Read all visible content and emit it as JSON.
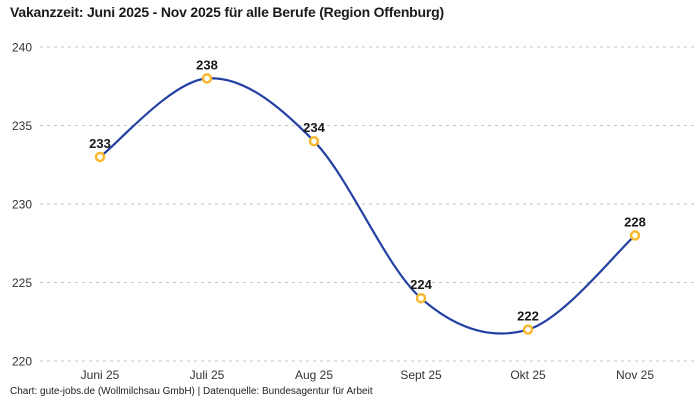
{
  "title": "Vakanzzeit: Juni 2025 - Nov 2025 für alle Berufe (Region Offenburg)",
  "footer": "Chart: gute-jobs.de (Wollmilchsau GmbH) | Datenquelle: Bundesagentur für Arbeit",
  "chart_data": {
    "type": "line",
    "title": "Vakanzzeit: Juni 2025 - Nov 2025 für alle Berufe (Region Offenburg)",
    "categories": [
      "Juni 25",
      "Juli 25",
      "Aug 25",
      "Sept 25",
      "Okt 25",
      "Nov 25"
    ],
    "values": [
      233,
      238,
      234,
      224,
      222,
      228
    ],
    "xlabel": "",
    "ylabel": "",
    "ylim": [
      220,
      240
    ],
    "yticks": [
      220,
      225,
      230,
      235,
      240
    ],
    "grid": "horizontal-dashed",
    "legend": "none",
    "line_shape": "spline",
    "marker_style": "open-circle",
    "attribution": "Chart: gute-jobs.de (Wollmilchsau GmbH) | Datenquelle: Bundesagentur für Arbeit",
    "colors": {
      "line": "#2340a3",
      "marker": "#f9b92c",
      "marker_fill": "#ffffff",
      "grid": "#c6c6c6",
      "axis_text": "#333333",
      "label_text": "#1a1a1a",
      "title_text": "#1a1a1a",
      "background": "#ffffff"
    }
  }
}
